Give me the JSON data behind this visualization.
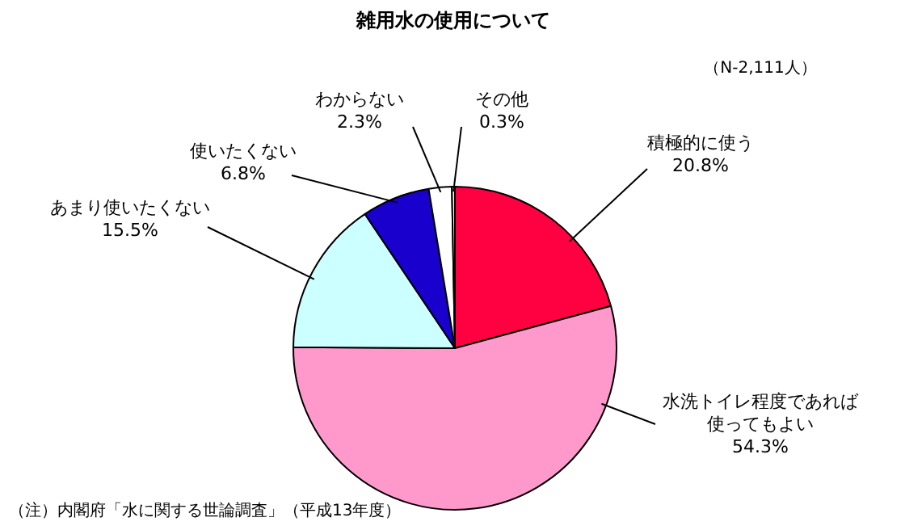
{
  "chart_data": {
    "type": "pie",
    "title": "雑用水の使用について",
    "categories": [
      "積極的に使う",
      "水洗トイレ程度であれば使ってもよい",
      "あまり使いたくない",
      "使いたくない",
      "わからない",
      "その他"
    ],
    "values": [
      20.8,
      54.3,
      15.5,
      6.8,
      2.3,
      0.3
    ],
    "colors": [
      "#ff0040",
      "#ff99cc",
      "#ccffff",
      "#1a00cc",
      "#ffffff",
      "#ffffff"
    ],
    "value_labels": [
      "20.8%",
      "54.3%",
      "15.5%",
      "6.8%",
      "2.3%",
      "0.3%"
    ],
    "annotations": [
      "（N-2,111人）",
      "（注）内閣府「水に関する世論調査」（平成13年度）"
    ]
  }
}
